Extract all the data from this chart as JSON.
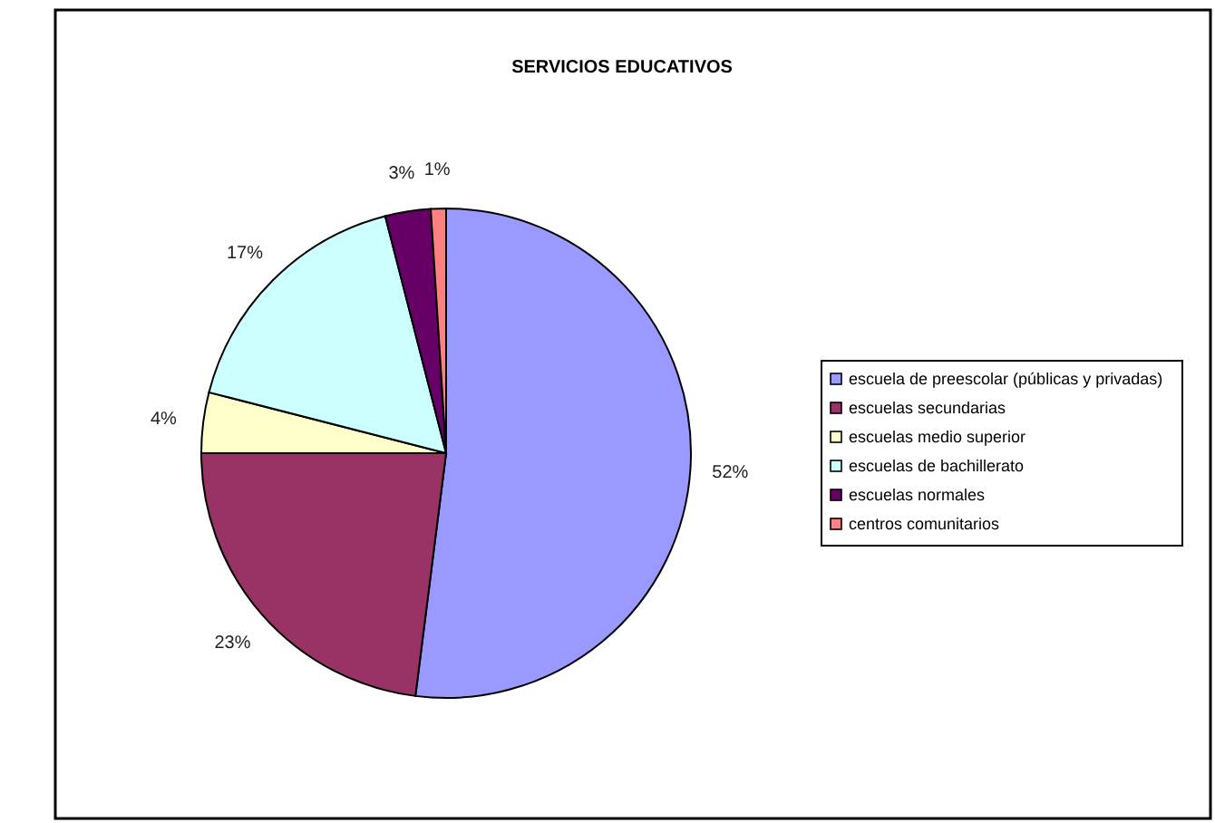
{
  "chart_data": {
    "type": "pie",
    "title": "SERVICIOS EDUCATIVOS",
    "categories": [
      "escuela de preescolar (públicas y privadas)",
      "escuelas secundarias",
      "escuelas medio superior",
      "escuelas de bachillerato",
      "escuelas normales",
      "centros comunitarios"
    ],
    "values": [
      52,
      23,
      4,
      17,
      3,
      1
    ],
    "value_labels": [
      "52%",
      "23%",
      "4%",
      "17%",
      "3%",
      "1%"
    ],
    "colors": [
      "#9999ff",
      "#993366",
      "#ffffcc",
      "#ccffff",
      "#660066",
      "#ff8080"
    ],
    "legend": "right"
  }
}
